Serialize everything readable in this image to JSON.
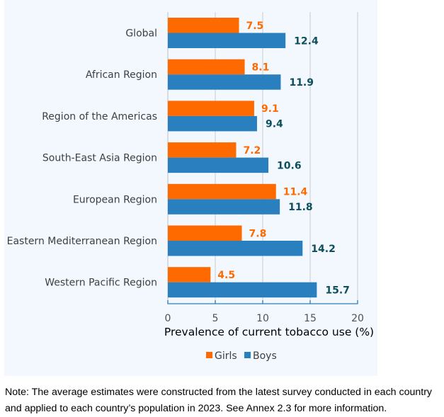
{
  "chart_data": {
    "type": "bar",
    "orientation": "horizontal",
    "title": "",
    "categories": [
      "Global",
      "African Region",
      "Region of the Americas",
      "South-East Asia Region",
      "European Region",
      "Eastern Mediterranean Region",
      "Western Pacific Region"
    ],
    "series": [
      {
        "name": "Girls",
        "color": "#ff6a00",
        "values": [
          7.5,
          8.1,
          9.1,
          7.2,
          11.4,
          7.8,
          4.5
        ],
        "labels": [
          "7.5",
          "8.1",
          "9.1",
          "7.2",
          "11.4",
          "7.8",
          "4.5"
        ]
      },
      {
        "name": "Boys",
        "color": "#2a7fbf",
        "values": [
          12.4,
          11.9,
          9.4,
          10.6,
          11.8,
          14.2,
          15.7
        ],
        "labels": [
          "12.4",
          "11.9",
          "9.4",
          "10.6",
          "11.8",
          "14.2",
          "15.7"
        ]
      }
    ],
    "xlabel": "Prevalence of current tobacco use (%)",
    "ylabel": "",
    "xlim": [
      0,
      20
    ],
    "xticks": [
      0,
      5,
      10,
      15,
      20
    ],
    "xtick_labels": [
      "0",
      "5",
      "10",
      "15",
      "20"
    ],
    "grid": true,
    "legend": {
      "placement": "bottom-center",
      "entries": [
        "Girls",
        "Boys"
      ]
    },
    "label_colors": {
      "girls": "#ff6a00",
      "boys": "#0d4f5c"
    }
  },
  "note": {
    "lines": [
      "Note: The average estimates were constructed from the latest survey conducted in each country",
      "and applied to each country’s population in 2023. See Annex 2.3 for more information."
    ]
  }
}
